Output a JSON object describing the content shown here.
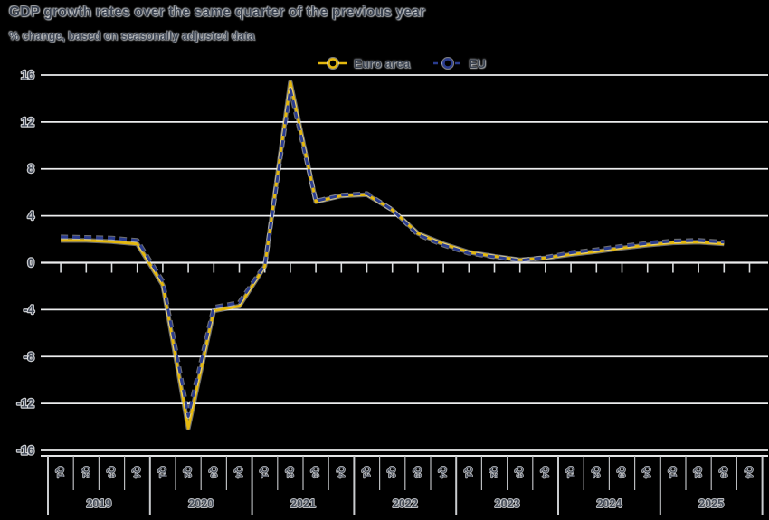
{
  "title": "GDP growth rates over the same quarter of the previous year",
  "subtitle": "% change, based on seasonally adjusted data",
  "legend": [
    {
      "label": "Euro area",
      "color": "#E4B80E",
      "line_style": "solid"
    },
    {
      "label": "EU",
      "color": "#2A3C8F",
      "line_style": "dashed"
    }
  ],
  "colors": {
    "background": "#000000",
    "gridline": "#ECEDEE",
    "separator": "#C9CBCE",
    "text": "#39414F",
    "euro_area_line": "#E4B80E",
    "eu_line": "#2A3C8F"
  },
  "chart_data": {
    "type": "line",
    "title": "GDP growth rates over the same quarter of the previous year",
    "subtitle": "% change, based on seasonally adjusted data",
    "ylabel": "% change",
    "ylim": [
      -16,
      16
    ],
    "yticks": [
      16,
      12,
      8,
      4,
      0,
      -4,
      -8,
      -12,
      -16
    ],
    "grid": "horizontal",
    "legend_position": "top",
    "years": [
      "2019",
      "2020",
      "2021",
      "2022",
      "2023",
      "2024",
      "2025"
    ],
    "quarter_labels": [
      "Q1",
      "Q2",
      "Q3",
      "Q4"
    ],
    "axis_quarter_cells": 28,
    "x": [
      "2019-Q1",
      "2019-Q2",
      "2019-Q3",
      "2019-Q4",
      "2020-Q1",
      "2020-Q2",
      "2020-Q3",
      "2020-Q4",
      "2021-Q1",
      "2021-Q2",
      "2021-Q3",
      "2021-Q4",
      "2022-Q1",
      "2022-Q2",
      "2022-Q3",
      "2022-Q4",
      "2023-Q1",
      "2023-Q2",
      "2023-Q3",
      "2023-Q4",
      "2024-Q1",
      "2024-Q2",
      "2024-Q3",
      "2024-Q4",
      "2025-Q1",
      "2025-Q2",
      "2025-Q3"
    ],
    "series": [
      {
        "name": "Euro area",
        "color": "#E4B80E",
        "line_style": "solid",
        "values": [
          1.9,
          1.9,
          1.8,
          1.6,
          -1.9,
          -14.1,
          -4.1,
          -3.7,
          -0.3,
          15.4,
          5.2,
          5.7,
          5.8,
          4.5,
          2.5,
          1.6,
          0.9,
          0.55,
          0.25,
          0.4,
          0.7,
          0.95,
          1.25,
          1.5,
          1.7,
          1.75,
          1.6
        ]
      },
      {
        "name": "EU",
        "color": "#2A3C8F",
        "line_style": "dashed",
        "values": [
          2.2,
          2.15,
          2.1,
          1.9,
          -1.6,
          -13.1,
          -3.8,
          -3.4,
          -0.2,
          14.8,
          5.25,
          5.75,
          5.9,
          4.5,
          2.4,
          1.5,
          0.8,
          0.5,
          0.2,
          0.45,
          0.85,
          1.1,
          1.4,
          1.65,
          1.85,
          1.9,
          1.75
        ]
      }
    ]
  }
}
